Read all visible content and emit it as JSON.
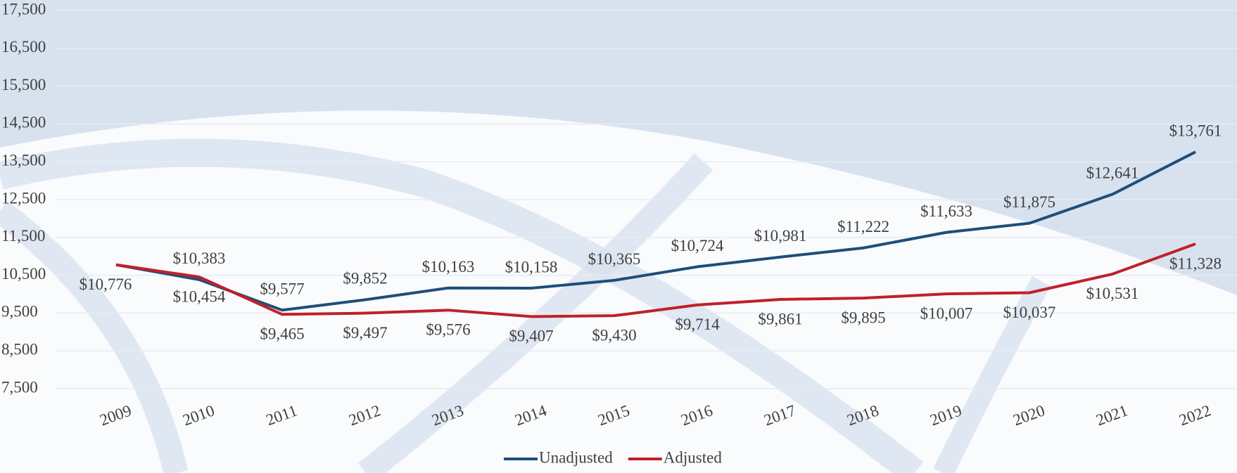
{
  "chart_data": {
    "type": "line",
    "categories": [
      "2009",
      "2010",
      "2011",
      "2012",
      "2013",
      "2014",
      "2015",
      "2016",
      "2017",
      "2018",
      "2019",
      "2020",
      "2021",
      "2022"
    ],
    "series": [
      {
        "name": "Unadjusted",
        "color": "#1f4e79",
        "values": [
          10776,
          10383,
          9577,
          9852,
          10163,
          10158,
          10365,
          10724,
          10981,
          11222,
          11633,
          11875,
          12641,
          13761
        ],
        "value_labels": [
          null,
          "$10,383",
          "$9,577",
          "$9,852",
          "$10,163",
          "$10,158",
          "$10,365",
          "$10,724",
          "$10,981",
          "$11,222",
          "$11,633",
          "$11,875",
          "$12,641",
          "$13,761"
        ]
      },
      {
        "name": "Adjusted",
        "color": "#c0202a",
        "values": [
          10776,
          10454,
          9465,
          9497,
          9576,
          9407,
          9430,
          9714,
          9861,
          9895,
          10007,
          10037,
          10531,
          11328
        ],
        "value_labels": [
          "$10,776",
          "$10,454",
          "$9,465",
          "$9,497",
          "$9,576",
          "$9,407",
          "$9,430",
          "$9,714",
          "$9,861",
          "$9,895",
          "$10,007",
          "$10,037",
          "$10,531",
          "$11,328"
        ]
      }
    ],
    "ylim": [
      7500,
      17500
    ],
    "yticks": [
      {
        "value": 7500,
        "label": "7,500"
      },
      {
        "value": 8500,
        "label": "8,500"
      },
      {
        "value": 9500,
        "label": "9,500"
      },
      {
        "value": 10500,
        "label": "10,500"
      },
      {
        "value": 11500,
        "label": "11,500"
      },
      {
        "value": 12500,
        "label": "12,500"
      },
      {
        "value": 13500,
        "label": "13,500"
      },
      {
        "value": 14500,
        "label": "14,500"
      },
      {
        "value": 15500,
        "label": "15,500"
      },
      {
        "value": 16500,
        "label": "16,500"
      },
      {
        "value": 17500,
        "label": "17,500"
      }
    ],
    "grid": true,
    "legend": "bottom"
  }
}
